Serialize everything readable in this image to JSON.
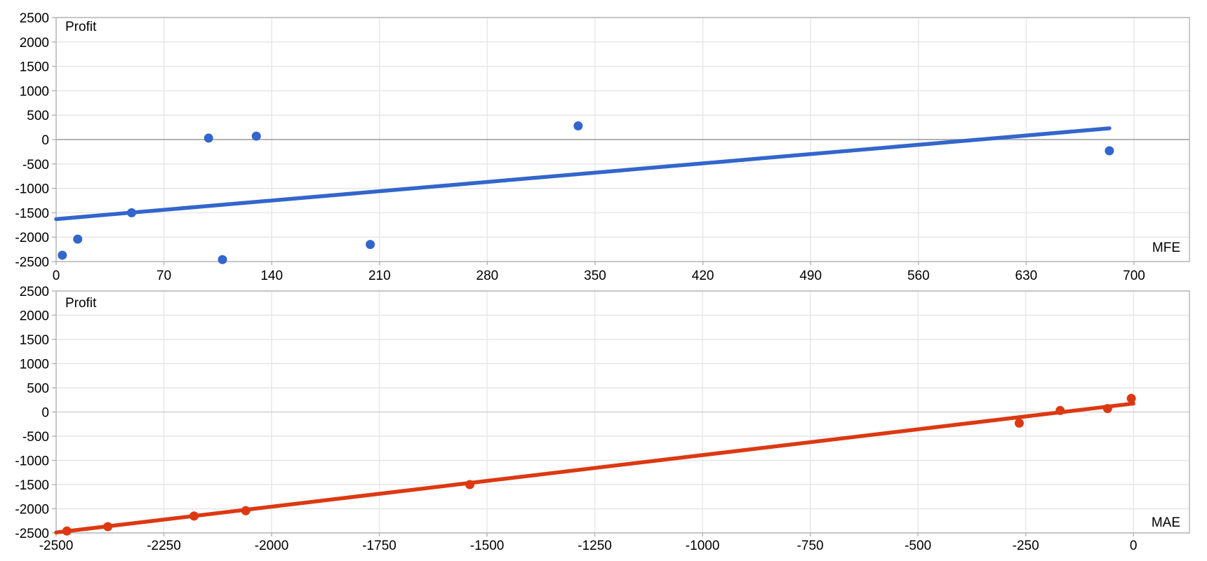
{
  "colors": {
    "background": "#ffffff",
    "gridline": "#e6e6e6",
    "plot_border": "#b3b3b3",
    "tick_mark": "#b3b3b3",
    "label_text": "#000000",
    "mfe_series": "#3366cc",
    "mae_series": "#dc3912"
  },
  "chart_data": [
    {
      "type": "scatter",
      "name": "profit-vs-mfe",
      "title": "",
      "xlabel": "MFE",
      "ylabel": "Profit",
      "legend": "none",
      "grid": true,
      "point_color": "#3366cc",
      "trendline_color": "#3366cc",
      "zero_line_color": "#999999",
      "xlim": [
        0,
        736
      ],
      "ylim": [
        -2500,
        2500
      ],
      "x_ticks": [
        0,
        70,
        140,
        210,
        280,
        350,
        420,
        490,
        560,
        630,
        700
      ],
      "y_ticks": [
        2500,
        2000,
        1500,
        1000,
        500,
        0,
        -500,
        -1000,
        -1500,
        -2000,
        -2500
      ],
      "points": [
        [
          4,
          -2370
        ],
        [
          14,
          -2040
        ],
        [
          49,
          -1500
        ],
        [
          99,
          30
        ],
        [
          108,
          -2460
        ],
        [
          130,
          70
        ],
        [
          204,
          -2150
        ],
        [
          339,
          280
        ],
        [
          684,
          -230
        ]
      ],
      "trendline": {
        "x": [
          0,
          684
        ],
        "y": [
          -1630,
          230
        ]
      }
    },
    {
      "type": "scatter",
      "name": "profit-vs-mae",
      "title": "",
      "xlabel": "MAE",
      "ylabel": "Profit",
      "legend": "none",
      "grid": true,
      "point_color": "#dc3912",
      "trendline_color": "#dc3912",
      "zero_line_color": "#d2d2d2",
      "xlim": [
        -2500,
        130
      ],
      "ylim": [
        -2500,
        2500
      ],
      "x_ticks": [
        -2500,
        -2250,
        -2000,
        -1750,
        -1500,
        -1250,
        -1000,
        -750,
        -500,
        -250,
        0
      ],
      "y_ticks": [
        2500,
        2000,
        1500,
        1000,
        500,
        0,
        -500,
        -1000,
        -1500,
        -2000,
        -2500
      ],
      "points": [
        [
          -2475,
          -2460
        ],
        [
          -2380,
          -2370
        ],
        [
          -2180,
          -2150
        ],
        [
          -2060,
          -2040
        ],
        [
          -1540,
          -1500
        ],
        [
          -265,
          -230
        ],
        [
          -170,
          30
        ],
        [
          -60,
          70
        ],
        [
          -5,
          280
        ]
      ],
      "trendline": {
        "x": [
          -2500,
          0
        ],
        "y": [
          -2490,
          175
        ]
      }
    }
  ]
}
